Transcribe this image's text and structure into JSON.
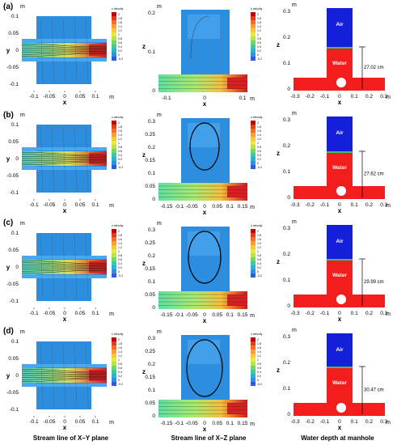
{
  "rows": [
    {
      "label": "(a)",
      "depth": "27.02 cm"
    },
    {
      "label": "(b)",
      "depth": "27.62 cm"
    },
    {
      "label": "(c)",
      "depth": "29.99 cm"
    },
    {
      "label": "(d)",
      "depth": "30.47 cm"
    }
  ],
  "captions": {
    "xy": "Stream line of X–Y plane",
    "xz": "Stream line of X–Z plane",
    "depth": "Water depth at manhole"
  },
  "axes": {
    "x_label": "x",
    "y_label": "y",
    "z_label": "z",
    "unit": "m",
    "xy_x_ticks": [
      "-0.1",
      "-0.05",
      "0",
      "0.05",
      "0.1"
    ],
    "xy_y_ticks": [
      "0.1",
      "0.05",
      "0",
      "-0.05",
      "-0.1"
    ],
    "xz_x_ticks_a": [
      "-0.1",
      "0",
      "0.1"
    ],
    "xz_x_ticks": [
      "-0.15",
      "-0.1",
      "-0.05",
      "0",
      "0.05",
      "0.1",
      "0.15"
    ],
    "xz_z_ticks_a": [
      "0.2",
      "0.1",
      "0"
    ],
    "xz_z_ticks_b": [
      "0.3",
      "0.25",
      "0.2",
      "0.15",
      "0.1",
      "0.05",
      "0"
    ],
    "xz_z_ticks_c": [
      "0.3",
      "0.25",
      "0.2",
      "0.15",
      "0.1",
      "0.05",
      "0"
    ],
    "xz_z_ticks_d": [
      "0.3",
      "0.25",
      "0.2",
      "0.15",
      "0.1",
      "0.05",
      "0"
    ],
    "depth_x_ticks": [
      "-0.3",
      "-0.2",
      "-0.1",
      "0",
      "0.1",
      "0.2",
      "0.3"
    ],
    "depth_z_ticks": [
      "0.3",
      "0.2",
      "0.1",
      "0"
    ]
  },
  "legend": {
    "title": "x velocity",
    "levels": [
      "2",
      "1.8",
      "1.6",
      "1.4",
      "1.2",
      "1",
      "0.8",
      "0.6",
      "0.4",
      "0.2",
      "0",
      "-0.2"
    ],
    "colors": [
      "#c40000",
      "#e53a1c",
      "#f46d2a",
      "#fb9d35",
      "#f7c63b",
      "#e8ea3c",
      "#b5e646",
      "#6fd76b",
      "#3dc7a2",
      "#29b3d9",
      "#2f8fe0",
      "#2d5ce0"
    ]
  },
  "phase_labels": {
    "air": "Air",
    "water": "Water"
  },
  "colors": {
    "field": "#2d8ee0",
    "field_light": "#4aa8ec",
    "inflow": "#4fd8b8",
    "outflow": "#d92020",
    "air": "#1420d8",
    "water": "#f21d1d",
    "interface": "#38c070"
  }
}
